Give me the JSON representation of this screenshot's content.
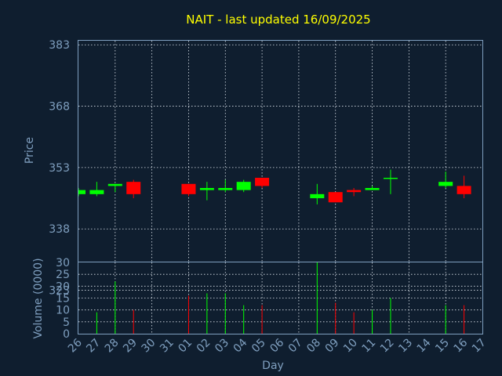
{
  "chart_data": {
    "type": "candlestick",
    "title": "NAIT - last updated 16/09/2025",
    "price_panel": {
      "ylabel": "Price",
      "ylim": [
        330,
        384
      ],
      "yticks": [
        323,
        338,
        353,
        368,
        383
      ]
    },
    "volume_panel": {
      "ylabel": "Volume (0000)",
      "ylim": [
        0,
        30
      ],
      "yticks": [
        0,
        5,
        10,
        15,
        20,
        25,
        30
      ]
    },
    "xlabel": "Day",
    "x_ticks": [
      "26",
      "27",
      "28",
      "29",
      "30",
      "31",
      "01",
      "02",
      "03",
      "04",
      "05",
      "06",
      "07",
      "08",
      "09",
      "10",
      "11",
      "12",
      "13",
      "14",
      "15",
      "16",
      "17"
    ],
    "up_color": "#00ff00",
    "down_color": "#ff0000",
    "candles": [
      {
        "day": "26",
        "open": 346.5,
        "high": 348.0,
        "low": 346.0,
        "close": 347.5,
        "volume": 0
      },
      {
        "day": "27",
        "open": 346.5,
        "high": 349.5,
        "low": 346.0,
        "close": 347.5,
        "volume": 9
      },
      {
        "day": "28",
        "open": 348.5,
        "high": 349.0,
        "low": 347.0,
        "close": 349.0,
        "volume": 22
      },
      {
        "day": "29",
        "open": 349.5,
        "high": 350.0,
        "low": 345.5,
        "close": 346.5,
        "volume": 10
      },
      {
        "day": "01",
        "open": 349.0,
        "high": 349.0,
        "low": 346.0,
        "close": 346.5,
        "volume": 16
      },
      {
        "day": "02",
        "open": 347.5,
        "high": 349.5,
        "low": 345.0,
        "close": 348.0,
        "volume": 17
      },
      {
        "day": "03",
        "open": 347.5,
        "high": 350.0,
        "low": 347.0,
        "close": 348.0,
        "volume": 17
      },
      {
        "day": "04",
        "open": 347.5,
        "high": 350.0,
        "low": 347.0,
        "close": 349.5,
        "volume": 12
      },
      {
        "day": "05",
        "open": 350.5,
        "high": 350.5,
        "low": 348.0,
        "close": 348.5,
        "volume": 12
      },
      {
        "day": "08",
        "open": 345.5,
        "high": 349.0,
        "low": 344.0,
        "close": 346.5,
        "volume": 30
      },
      {
        "day": "09",
        "open": 347.0,
        "high": 347.0,
        "low": 344.5,
        "close": 344.5,
        "volume": 13
      },
      {
        "day": "10",
        "open": 347.5,
        "high": 348.0,
        "low": 346.0,
        "close": 347.0,
        "volume": 9
      },
      {
        "day": "11",
        "open": 347.5,
        "high": 348.5,
        "low": 347.5,
        "close": 348.0,
        "volume": 10
      },
      {
        "day": "12",
        "open": 350.5,
        "high": 352.5,
        "low": 346.5,
        "close": 350.5,
        "volume": 15
      },
      {
        "day": "15",
        "open": 348.5,
        "high": 352.0,
        "low": 348.0,
        "close": 349.5,
        "volume": 12
      },
      {
        "day": "16",
        "open": 348.5,
        "high": 351.0,
        "low": 345.5,
        "close": 346.5,
        "volume": 12
      }
    ]
  }
}
